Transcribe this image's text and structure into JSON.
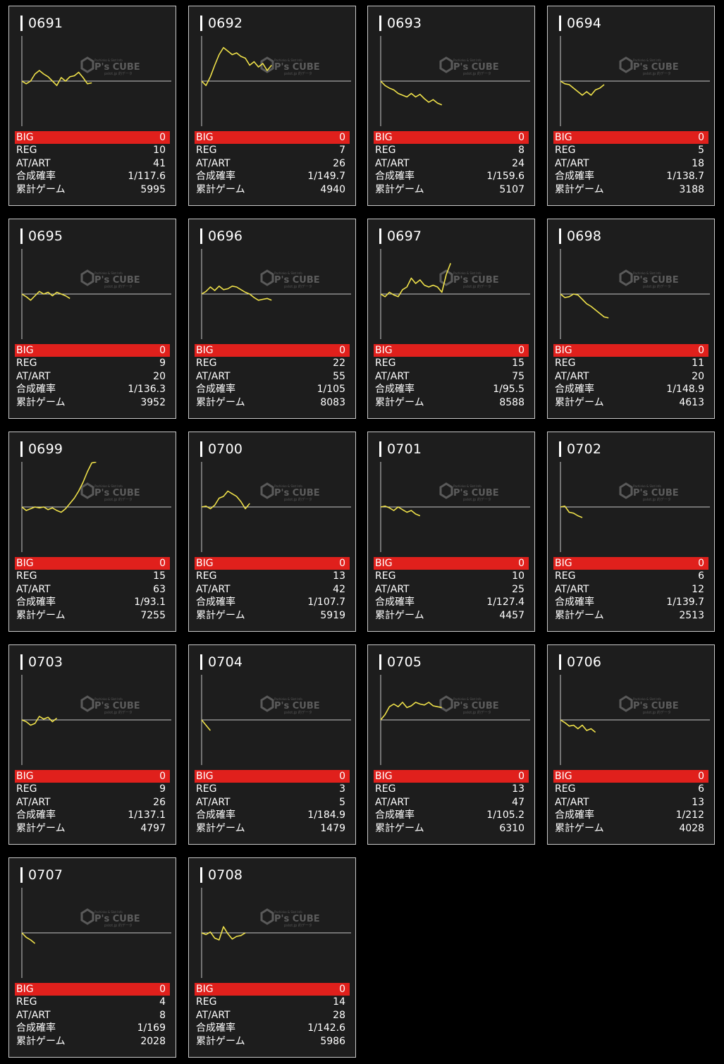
{
  "labels": {
    "big": "BIG",
    "reg": "REG",
    "atart": "AT/ART",
    "prob": "合成確率",
    "games": "累計ゲーム"
  },
  "watermark": {
    "top": "Pachinko & Slot Info",
    "brand": "P's CUBE",
    "bottom": "pslot.jp 的データ"
  },
  "colors": {
    "page_bg": "#000000",
    "card_bg": "#1d1d1d",
    "big_row": "#e0201c",
    "graph_line": "#f0e24a"
  },
  "machines": [
    {
      "id": "0691",
      "big": "0",
      "reg": "10",
      "atart": "41",
      "prob": "1/117.6",
      "games": "5995",
      "trend": [
        0,
        -3,
        0,
        8,
        12,
        8,
        5,
        0,
        -5,
        4,
        0,
        5,
        6,
        10,
        4,
        -3,
        -2
      ]
    },
    {
      "id": "0692",
      "big": "0",
      "reg": "7",
      "atart": "26",
      "prob": "1/149.7",
      "games": "4940",
      "trend": [
        0,
        -5,
        5,
        18,
        30,
        38,
        34,
        30,
        32,
        28,
        26,
        18,
        22,
        16,
        20,
        12,
        18
      ]
    },
    {
      "id": "0693",
      "big": "0",
      "reg": "8",
      "atart": "24",
      "prob": "1/159.6",
      "games": "5107",
      "trend": [
        0,
        -5,
        -8,
        -10,
        -14,
        -16,
        -18,
        -14,
        -18,
        -15,
        -20,
        -24,
        -21,
        -25,
        -27
      ]
    },
    {
      "id": "0694",
      "big": "0",
      "reg": "5",
      "atart": "18",
      "prob": "1/138.7",
      "games": "3188",
      "trend": [
        0,
        -3,
        -4,
        -8,
        -12,
        -16,
        -12,
        -16,
        -10,
        -8,
        -4
      ]
    },
    {
      "id": "0695",
      "big": "0",
      "reg": "9",
      "atart": "20",
      "prob": "1/136.3",
      "games": "3952",
      "trend": [
        0,
        -3,
        -7,
        -2,
        3,
        0,
        2,
        -2,
        2,
        0,
        -2,
        -5
      ]
    },
    {
      "id": "0696",
      "big": "0",
      "reg": "22",
      "atart": "55",
      "prob": "1/105",
      "games": "8083",
      "trend": [
        0,
        3,
        8,
        4,
        9,
        5,
        6,
        9,
        8,
        5,
        2,
        0,
        -4,
        -7,
        -6,
        -5,
        -7
      ]
    },
    {
      "id": "0697",
      "big": "0",
      "reg": "15",
      "atart": "75",
      "prob": "1/95.5",
      "games": "8588",
      "trend": [
        0,
        -3,
        2,
        -1,
        -3,
        5,
        8,
        18,
        12,
        16,
        10,
        8,
        10,
        8,
        2,
        22,
        35
      ]
    },
    {
      "id": "0698",
      "big": "0",
      "reg": "11",
      "atart": "20",
      "prob": "1/148.9",
      "games": "4613",
      "trend": [
        0,
        -4,
        -3,
        0,
        -1,
        -6,
        -11,
        -14,
        -18,
        -22,
        -26,
        -27
      ]
    },
    {
      "id": "0699",
      "big": "0",
      "reg": "15",
      "atart": "63",
      "prob": "1/93.1",
      "games": "7255",
      "trend": [
        0,
        -4,
        -2,
        0,
        -1,
        0,
        -3,
        -1,
        -4,
        -6,
        -2,
        4,
        10,
        18,
        28,
        40,
        50,
        51
      ]
    },
    {
      "id": "0700",
      "big": "0",
      "reg": "13",
      "atart": "42",
      "prob": "1/107.7",
      "games": "5919",
      "trend": [
        0,
        1,
        -2,
        2,
        10,
        12,
        18,
        15,
        12,
        6,
        -2,
        4
      ]
    },
    {
      "id": "0701",
      "big": "0",
      "reg": "10",
      "atart": "25",
      "prob": "1/127.4",
      "games": "4457",
      "trend": [
        0,
        1,
        -1,
        -4,
        0,
        -3,
        -6,
        -4,
        -8,
        -10
      ]
    },
    {
      "id": "0702",
      "big": "0",
      "reg": "6",
      "atart": "12",
      "prob": "1/139.7",
      "games": "2513",
      "trend": [
        0,
        1,
        -6,
        -7,
        -10,
        -12
      ]
    },
    {
      "id": "0703",
      "big": "0",
      "reg": "9",
      "atart": "26",
      "prob": "1/137.1",
      "games": "4797",
      "trend": [
        0,
        -2,
        -6,
        -4,
        4,
        1,
        3,
        -2,
        2
      ]
    },
    {
      "id": "0704",
      "big": "0",
      "reg": "3",
      "atart": "5",
      "prob": "1/184.9",
      "games": "1479",
      "trend": [
        0,
        -6,
        -12
      ]
    },
    {
      "id": "0705",
      "big": "0",
      "reg": "13",
      "atart": "47",
      "prob": "1/105.2",
      "games": "6310",
      "trend": [
        0,
        6,
        15,
        18,
        15,
        20,
        14,
        16,
        20,
        18,
        17,
        20,
        16,
        15,
        14
      ]
    },
    {
      "id": "0706",
      "big": "0",
      "reg": "6",
      "atart": "13",
      "prob": "1/212",
      "games": "4028",
      "trend": [
        0,
        -3,
        -7,
        -6,
        -10,
        -6,
        -12,
        -10,
        -14
      ]
    },
    {
      "id": "0707",
      "big": "0",
      "reg": "4",
      "atart": "8",
      "prob": "1/169",
      "games": "2028",
      "trend": [
        0,
        -5,
        -8,
        -12
      ]
    },
    {
      "id": "0708",
      "big": "0",
      "reg": "14",
      "atart": "28",
      "prob": "1/142.6",
      "games": "5986",
      "trend": [
        0,
        -2,
        1,
        -6,
        -8,
        7,
        -1,
        -7,
        -4,
        -3,
        0
      ]
    }
  ]
}
